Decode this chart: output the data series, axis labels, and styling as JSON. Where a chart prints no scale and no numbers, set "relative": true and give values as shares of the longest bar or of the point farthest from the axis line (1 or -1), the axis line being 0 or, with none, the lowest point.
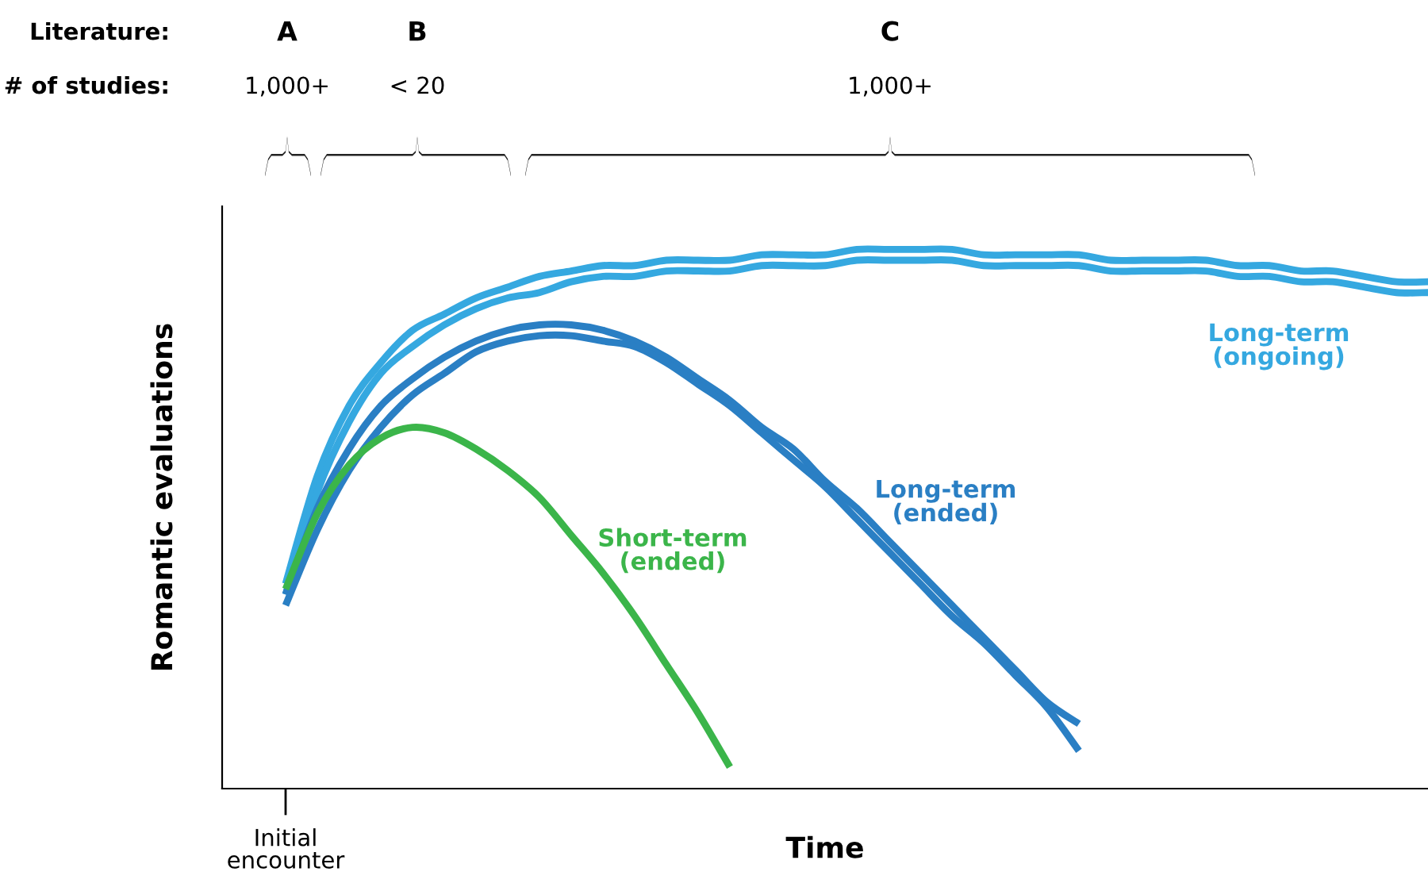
{
  "chart_data": {
    "type": "line",
    "relative": true,
    "ylabel": "Romantic evaluations",
    "xlabel": "Time",
    "categories": [
      null,
      null,
      null,
      null,
      null,
      null,
      null,
      null,
      null,
      null,
      null,
      null,
      null,
      null,
      null,
      null,
      null,
      null,
      null,
      null,
      null,
      null,
      null,
      null,
      null,
      null,
      null,
      null,
      null,
      null,
      null,
      null,
      null,
      null,
      null,
      null,
      null
    ],
    "series": [
      {
        "name": "Long-term\n(ongoing)",
        "color": "#35a8e0",
        "values": [
          0.38,
          0.58,
          0.71,
          0.79,
          0.85,
          0.88,
          0.91,
          0.93,
          0.95,
          0.96,
          0.97,
          0.97,
          0.98,
          0.98,
          0.98,
          0.99,
          0.99,
          0.99,
          1.0,
          1.0,
          1.0,
          1.0,
          0.99,
          0.99,
          0.99,
          0.99,
          0.98,
          0.98,
          0.98,
          0.98,
          0.97,
          0.97,
          0.96,
          0.96,
          0.95,
          0.94,
          0.94
        ]
      },
      {
        "color": "#35a8e0",
        "values": [
          0.36,
          0.55,
          0.68,
          0.77,
          0.82,
          0.86,
          0.89,
          0.91,
          0.92,
          0.94,
          0.95,
          0.95,
          0.96,
          0.96,
          0.96,
          0.97,
          0.97,
          0.97,
          0.98,
          0.98,
          0.98,
          0.98,
          0.97,
          0.97,
          0.97,
          0.97,
          0.96,
          0.96,
          0.96,
          0.96,
          0.95,
          0.95,
          0.94,
          0.94,
          0.93,
          0.92,
          0.92
        ]
      },
      {
        "name": "Long-term\n(ended)",
        "color": "#2a7fc4",
        "values": [
          0.36,
          0.52,
          0.63,
          0.71,
          0.76,
          0.8,
          0.83,
          0.85,
          0.86,
          0.86,
          0.85,
          0.83,
          0.8,
          0.76,
          0.72,
          0.67,
          0.63,
          0.57,
          0.52,
          0.46,
          0.4,
          0.34,
          0.28,
          0.22,
          0.16,
          0.12,
          null,
          null,
          null,
          null,
          null,
          null,
          null,
          null,
          null,
          null,
          null
        ]
      },
      {
        "color": "#2a7fc4",
        "values": [
          0.34,
          0.48,
          0.59,
          0.67,
          0.73,
          0.77,
          0.81,
          0.83,
          0.84,
          0.84,
          0.83,
          0.82,
          0.79,
          0.75,
          0.71,
          0.66,
          0.61,
          0.56,
          0.5,
          0.44,
          0.38,
          0.32,
          0.27,
          0.21,
          0.15,
          0.07,
          null,
          null,
          null,
          null,
          null,
          null,
          null,
          null,
          null,
          null,
          null
        ]
      },
      {
        "name": "Short-term\n(ended)",
        "color": "#3bb54a",
        "values": [
          0.37,
          0.51,
          0.6,
          0.65,
          0.67,
          0.66,
          0.63,
          0.59,
          0.54,
          0.47,
          0.4,
          0.32,
          0.23,
          0.14,
          0.04,
          null,
          null,
          null,
          null,
          null,
          null,
          null,
          null,
          null,
          null,
          null,
          null,
          null,
          null,
          null,
          null,
          null,
          null,
          null,
          null,
          null,
          null
        ]
      }
    ],
    "annotations": [
      "Initial\nencounter",
      "Literature:",
      "# of studies:",
      "A",
      "1,000+",
      "B",
      "< 20",
      "C",
      "1,000+"
    ],
    "grid": false,
    "marker": "none",
    "line_style": "solid"
  }
}
